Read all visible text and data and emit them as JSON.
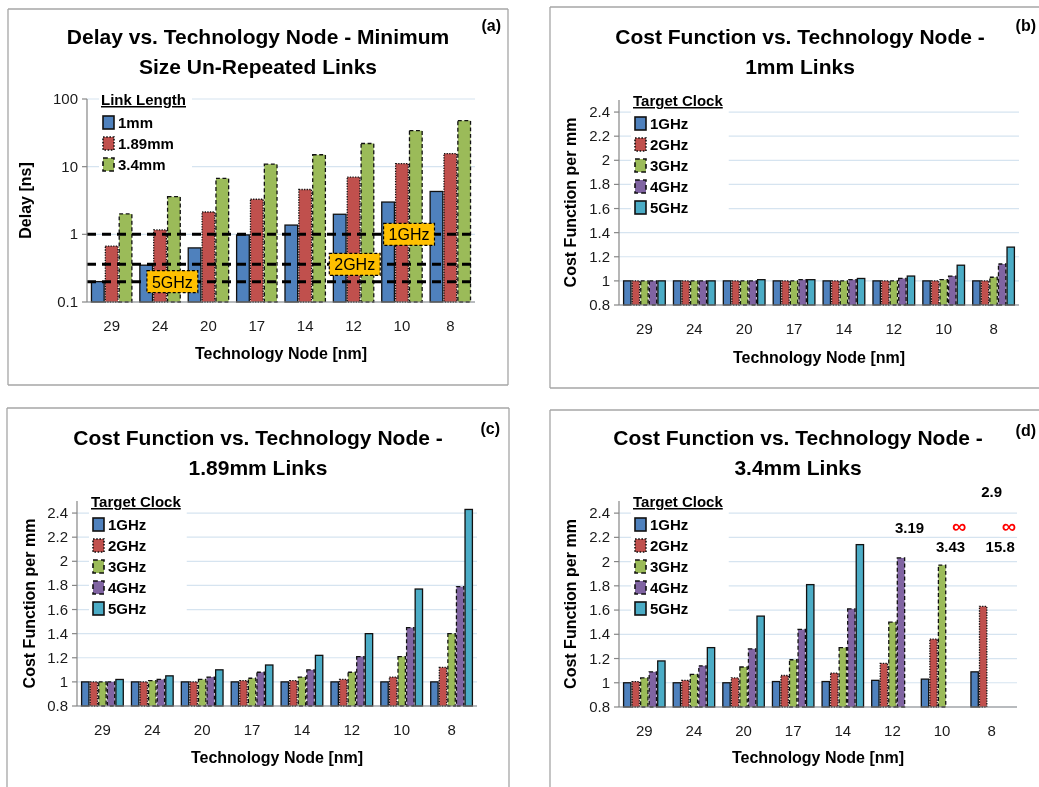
{
  "chart_data": [
    {
      "type": "bar",
      "title": "Delay vs. Technology Node - Minimum Size Un-Repeated Links",
      "xlabel": "Technology Node [nm]",
      "ylabel": "Delay [ns]",
      "legend_title": "Link Length",
      "annotations": [
        "(a)"
      ],
      "categories": [
        "29",
        "24",
        "20",
        "17",
        "14",
        "12",
        "10",
        "8"
      ],
      "series": [
        {
          "name": "1mm",
          "color": "#4f81bd",
          "line_style": "solid",
          "values": [
            0.2,
            0.35,
            0.63,
            0.98,
            1.37,
            1.98,
            3.0,
            4.3
          ]
        },
        {
          "name": "1.89mm",
          "color": "#c0504d",
          "line_style": "dotted",
          "values": [
            0.67,
            1.16,
            2.14,
            3.3,
            4.6,
            7.0,
            11.1,
            15.6
          ]
        },
        {
          "name": "3.4mm",
          "color": "#9bbb59",
          "line_style": "dashed",
          "values": [
            2.0,
            3.6,
            6.7,
            10.9,
            15,
            22,
            34,
            48
          ]
        }
      ],
      "log": "y",
      "ylim": [
        0.1,
        100
      ],
      "yticks": [
        0.1,
        1,
        10,
        100
      ],
      "grid": "y",
      "legend": "top left",
      "ref_lines": [
        {
          "axis": "y",
          "value": 1,
          "label": "1GHz",
          "color": "#000000",
          "line_style": "dashed"
        },
        {
          "axis": "y",
          "value": 0.36,
          "label": "2GHz",
          "color": "#000000",
          "line_style": "dashed"
        },
        {
          "axis": "y",
          "value": 0.2,
          "label": "5GHz",
          "color": "#000000",
          "line_style": "dashed"
        }
      ]
    },
    {
      "type": "bar",
      "title": "Cost Function vs. Technology Node - 1mm Links",
      "xlabel": "Technology Node [nm]",
      "ylabel": "Cost Function per mm",
      "legend_title": "Target Clock",
      "annotations": [
        "(b)"
      ],
      "categories": [
        "29",
        "24",
        "20",
        "17",
        "14",
        "12",
        "10",
        "8"
      ],
      "series": [
        {
          "name": "1GHz",
          "color": "#4f81bd",
          "line_style": "solid",
          "values": [
            1,
            1,
            1,
            1,
            1,
            1,
            1,
            1
          ]
        },
        {
          "name": "2GHz",
          "color": "#c0504d",
          "line_style": "dotted",
          "values": [
            1,
            1,
            1,
            1,
            1,
            1,
            1,
            1
          ]
        },
        {
          "name": "3GHz",
          "color": "#9bbb59",
          "line_style": "dashed",
          "values": [
            1,
            1,
            1,
            1,
            1,
            1,
            1.01,
            1.03
          ]
        },
        {
          "name": "4GHz",
          "color": "#8064a2",
          "line_style": "dashed",
          "values": [
            1,
            1,
            1,
            1.01,
            1.01,
            1.02,
            1.04,
            1.14
          ]
        },
        {
          "name": "5GHz",
          "color": "#4bacc6",
          "line_style": "solid",
          "values": [
            1,
            1,
            1.01,
            1.01,
            1.02,
            1.04,
            1.13,
            1.28
          ]
        }
      ],
      "ylim": [
        0.8,
        2.5
      ],
      "yticks": [
        0.8,
        1,
        1.2,
        1.4,
        1.6,
        1.8,
        2,
        2.2,
        2.4
      ],
      "grid": "y",
      "legend": "top left"
    },
    {
      "type": "bar",
      "title": "Cost Function vs. Technology Node - 1.89mm Links",
      "xlabel": "Technology Node [nm]",
      "ylabel": "Cost Function per mm",
      "legend_title": "Target Clock",
      "annotations": [
        "(c)"
      ],
      "categories": [
        "29",
        "24",
        "20",
        "17",
        "14",
        "12",
        "10",
        "8"
      ],
      "series": [
        {
          "name": "1GHz",
          "color": "#4f81bd",
          "line_style": "solid",
          "values": [
            1,
            1,
            1,
            1,
            1,
            1,
            1,
            1
          ]
        },
        {
          "name": "2GHz",
          "color": "#c0504d",
          "line_style": "dotted",
          "values": [
            1,
            1,
            1,
            1.01,
            1.01,
            1.02,
            1.04,
            1.12
          ]
        },
        {
          "name": "3GHz",
          "color": "#9bbb59",
          "line_style": "dashed",
          "values": [
            1,
            1.01,
            1.02,
            1.03,
            1.04,
            1.08,
            1.21,
            1.4
          ]
        },
        {
          "name": "4GHz",
          "color": "#8064a2",
          "line_style": "dashed",
          "values": [
            1,
            1.02,
            1.04,
            1.08,
            1.1,
            1.21,
            1.45,
            1.79
          ]
        },
        {
          "name": "5GHz",
          "color": "#4bacc6",
          "line_style": "solid",
          "values": [
            1.02,
            1.05,
            1.1,
            1.14,
            1.22,
            1.4,
            1.77,
            2.43
          ]
        }
      ],
      "ylim": [
        0.8,
        2.5
      ],
      "yticks": [
        0.8,
        1,
        1.2,
        1.4,
        1.6,
        1.8,
        2,
        2.2,
        2.4
      ],
      "grid": "y",
      "legend": "top left"
    },
    {
      "type": "bar",
      "title": "Cost Function vs. Technology Node - 3.4mm Links",
      "xlabel": "Technology Node [nm]",
      "ylabel": "Cost Function per mm",
      "legend_title": "Target Clock",
      "annotations": [
        "(d)"
      ],
      "categories": [
        "29",
        "24",
        "20",
        "17",
        "14",
        "12",
        "10",
        "8"
      ],
      "series": [
        {
          "name": "1GHz",
          "color": "#4f81bd",
          "line_style": "solid",
          "values": [
            1,
            1,
            1,
            1.01,
            1.01,
            1.02,
            1.03,
            1.09
          ]
        },
        {
          "name": "2GHz",
          "color": "#c0504d",
          "line_style": "dotted",
          "values": [
            1.01,
            1.02,
            1.04,
            1.06,
            1.08,
            1.16,
            1.36,
            1.63
          ]
        },
        {
          "name": "3GHz",
          "color": "#9bbb59",
          "line_style": "dashed",
          "values": [
            1.04,
            1.07,
            1.13,
            1.19,
            1.29,
            1.5,
            1.97,
            null
          ],
          "value_labels": [
            null,
            null,
            null,
            null,
            null,
            null,
            null,
            "2.9"
          ]
        },
        {
          "name": "4GHz",
          "color": "#8064a2",
          "line_style": "dashed",
          "values": [
            1.09,
            1.14,
            1.28,
            1.44,
            1.61,
            2.03,
            null,
            null
          ],
          "value_labels": [
            null,
            null,
            null,
            null,
            null,
            null,
            "3.43",
            "15.8"
          ]
        },
        {
          "name": "5GHz",
          "color": "#4bacc6",
          "line_style": "solid",
          "values": [
            1.18,
            1.29,
            1.55,
            1.81,
            2.14,
            null,
            null,
            null
          ],
          "value_labels": [
            null,
            null,
            null,
            null,
            null,
            "3.19",
            "∞",
            "∞"
          ]
        }
      ],
      "ylim": [
        0.8,
        2.5
      ],
      "yticks": [
        0.8,
        1,
        1.2,
        1.4,
        1.6,
        1.8,
        2,
        2.2,
        2.4
      ],
      "grid": "y",
      "legend": "top left"
    }
  ]
}
